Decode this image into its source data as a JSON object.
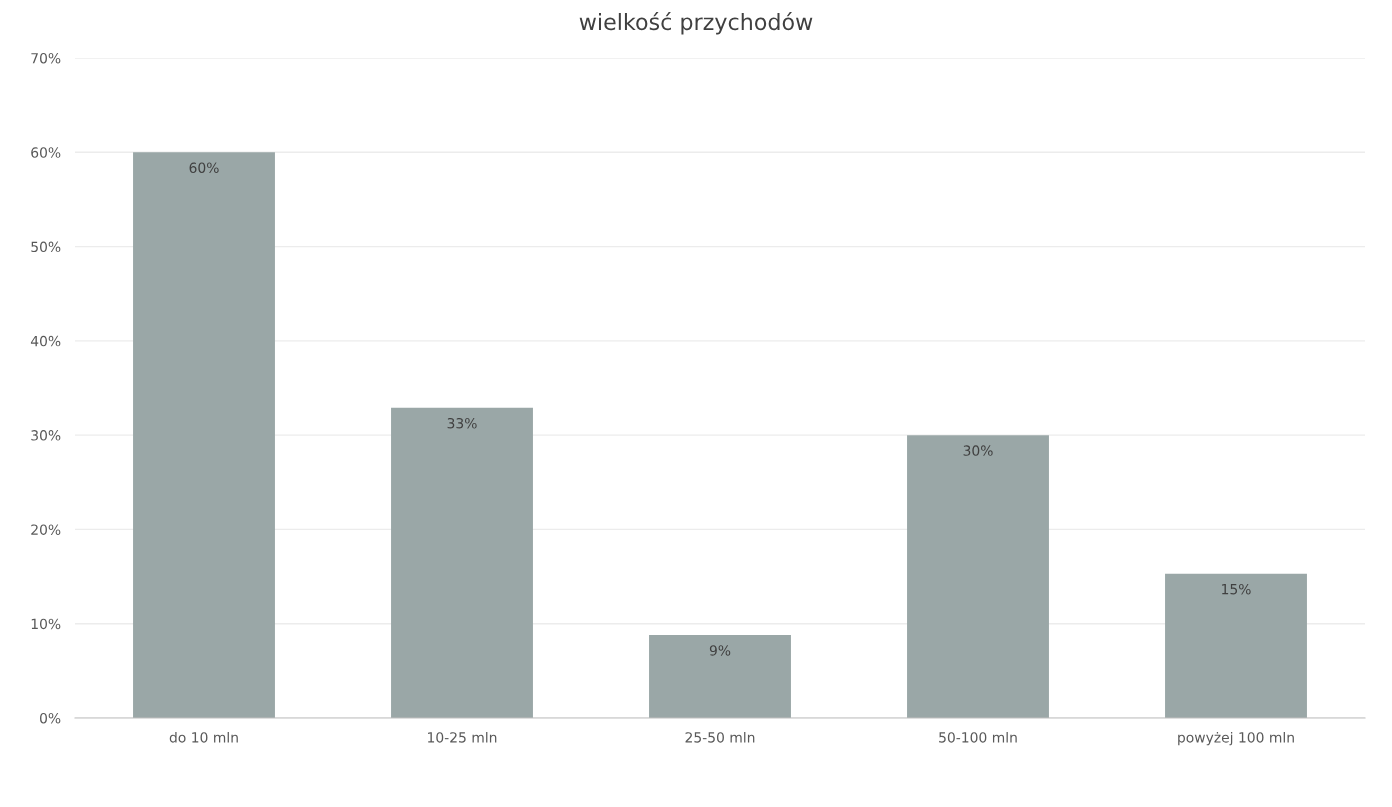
{
  "chart_data": {
    "type": "bar",
    "title": "wielkość przychodów",
    "categories": [
      "do 10 mln",
      "10-25 mln",
      "25-50 mln",
      "50-100 mln",
      "powyżej 100 mln"
    ],
    "values": [
      60,
      32.9,
      8.8,
      30,
      15.3
    ],
    "value_labels": [
      "60%",
      "33%",
      "9%",
      "30%",
      "15%"
    ],
    "color": "#9aa7a7",
    "ylim": [
      0,
      70
    ],
    "yticks": [
      {
        "value": 0,
        "label": "0%"
      },
      {
        "value": 10,
        "label": "10%"
      },
      {
        "value": 20,
        "label": "20%"
      },
      {
        "value": 30,
        "label": "30%"
      },
      {
        "value": 40,
        "label": "40%"
      },
      {
        "value": 50,
        "label": "50%"
      },
      {
        "value": 60,
        "label": "60%"
      },
      {
        "value": 70,
        "label": "70%"
      }
    ],
    "grid": "y",
    "legend": false
  }
}
